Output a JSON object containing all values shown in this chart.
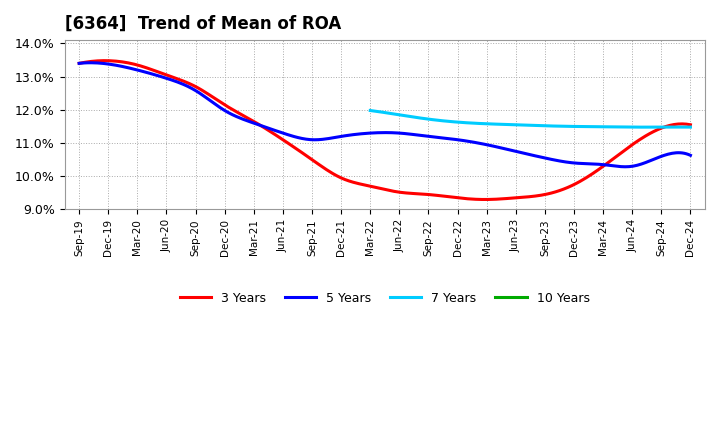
{
  "title": "[6364]  Trend of Mean of ROA",
  "ylim": [
    0.09,
    0.141
  ],
  "yticks": [
    0.09,
    0.1,
    0.11,
    0.12,
    0.13,
    0.14
  ],
  "ytick_labels": [
    "9.0%",
    "10.0%",
    "11.0%",
    "12.0%",
    "13.0%",
    "14.0%"
  ],
  "background_color": "#ffffff",
  "plot_bg_color": "#ffffff",
  "grid_color": "#aaaaaa",
  "xtick_labels": [
    "Sep-19",
    "Dec-19",
    "Mar-20",
    "Jun-20",
    "Sep-20",
    "Dec-20",
    "Mar-21",
    "Jun-21",
    "Sep-21",
    "Dec-21",
    "Mar-22",
    "Jun-22",
    "Sep-22",
    "Dec-22",
    "Mar-23",
    "Jun-23",
    "Sep-23",
    "Dec-23",
    "Mar-24",
    "Jun-24",
    "Sep-24",
    "Dec-24"
  ],
  "series": {
    "3 Years": {
      "color": "#ff0000",
      "x_indices": [
        0,
        1,
        2,
        3,
        4,
        5,
        6,
        7,
        8,
        9,
        10,
        11,
        12,
        13,
        14,
        15,
        16,
        17,
        18,
        19,
        20,
        21
      ],
      "values": [
        0.134,
        0.1348,
        0.1335,
        0.1305,
        0.127,
        0.1215,
        0.1165,
        0.111,
        0.105,
        0.0995,
        0.097,
        0.0952,
        0.0945,
        0.0935,
        0.093,
        0.0935,
        0.0945,
        0.0975,
        0.103,
        0.1095,
        0.1145,
        0.1155
      ]
    },
    "5 Years": {
      "color": "#0000ff",
      "x_indices": [
        0,
        1,
        2,
        3,
        4,
        5,
        6,
        7,
        8,
        9,
        10,
        11,
        12,
        13,
        14,
        15,
        16,
        17,
        18,
        19,
        20,
        21
      ],
      "values": [
        0.134,
        0.1338,
        0.132,
        0.1295,
        0.1258,
        0.1198,
        0.116,
        0.113,
        0.111,
        0.112,
        0.113,
        0.113,
        0.112,
        0.111,
        0.1095,
        0.1075,
        0.1055,
        0.104,
        0.1035,
        0.103,
        0.106,
        0.1063
      ]
    },
    "7 Years": {
      "color": "#00ccff",
      "x_indices": [
        10,
        11,
        12,
        13,
        14,
        15,
        16,
        17,
        18,
        19,
        20,
        21
      ],
      "values": [
        0.1198,
        0.1185,
        0.1172,
        0.1163,
        0.1158,
        0.1155,
        0.1152,
        0.115,
        0.1149,
        0.1148,
        0.1148,
        0.1148
      ]
    },
    "10 Years": {
      "color": "#00aa00",
      "x_indices": [],
      "values": []
    }
  },
  "legend_order": [
    "3 Years",
    "5 Years",
    "7 Years",
    "10 Years"
  ]
}
